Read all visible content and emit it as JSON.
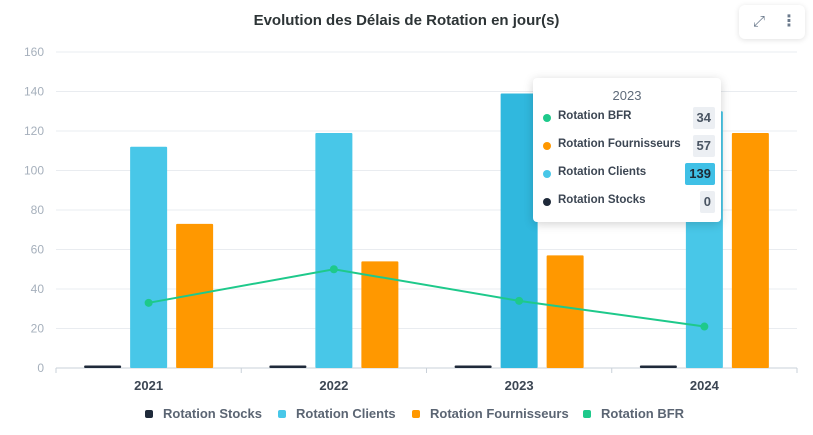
{
  "chart_data": {
    "type": "bar",
    "title": "Evolution des Délais de Rotation en jour(s)",
    "categories": [
      "2021",
      "2022",
      "2023",
      "2024"
    ],
    "series": [
      {
        "name": "Rotation Stocks",
        "type": "bar",
        "color": "#1f2a3a",
        "values": [
          0,
          0,
          0,
          0
        ]
      },
      {
        "name": "Rotation Clients",
        "type": "bar",
        "color": "#48c7e8",
        "values": [
          112,
          119,
          139,
          130
        ]
      },
      {
        "name": "Rotation Fournisseurs",
        "type": "bar",
        "color": "#ff9800",
        "values": [
          73,
          54,
          57,
          119
        ]
      },
      {
        "name": "Rotation BFR",
        "type": "line",
        "color": "#1ec98b",
        "values": [
          33,
          50,
          34,
          21
        ]
      }
    ],
    "yticks": [
      "0",
      "20",
      "40",
      "60",
      "80",
      "100",
      "120",
      "140",
      "160"
    ],
    "ylim": [
      0,
      160
    ],
    "grid": true,
    "legend_position": "bottom"
  },
  "tooltip": {
    "title": "2023",
    "rows": [
      {
        "label": "Rotation BFR",
        "value": "34",
        "color": "#1ec98b"
      },
      {
        "label": "Rotation Fournisseurs",
        "value": "57",
        "color": "#ff9800"
      },
      {
        "label": "Rotation Clients",
        "value": "139",
        "color": "#48c7e8"
      },
      {
        "label": "Rotation Stocks",
        "value": "0",
        "color": "#1f2a3a"
      }
    ]
  },
  "toolbar": {
    "expand_icon": "expand-icon",
    "menu_icon": "more-vertical-icon"
  }
}
